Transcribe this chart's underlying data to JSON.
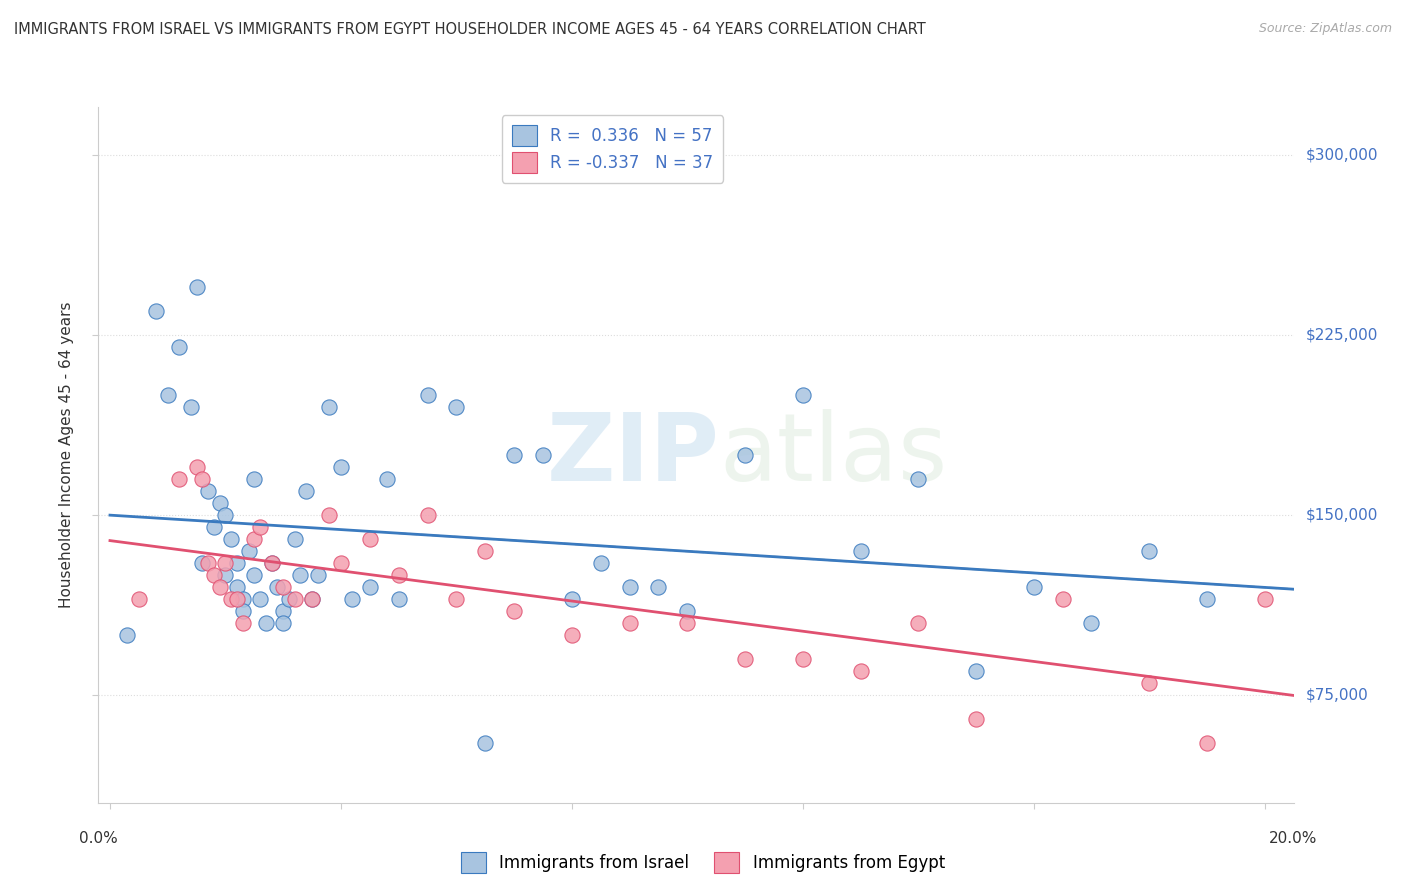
{
  "title": "IMMIGRANTS FROM ISRAEL VS IMMIGRANTS FROM EGYPT HOUSEHOLDER INCOME AGES 45 - 64 YEARS CORRELATION CHART",
  "source": "Source: ZipAtlas.com",
  "ylabel": "Householder Income Ages 45 - 64 years",
  "ytick_labels": [
    "$75,000",
    "$150,000",
    "$225,000",
    "$300,000"
  ],
  "ytick_values": [
    75000,
    150000,
    225000,
    300000
  ],
  "ylim": [
    30000,
    320000
  ],
  "xlim": [
    -0.002,
    0.205
  ],
  "watermark_zip": "ZIP",
  "watermark_atlas": "atlas",
  "legend_r1": "R =  0.336   N = 57",
  "legend_r2": "R = -0.337   N = 37",
  "israel_color": "#a8c4e0",
  "israel_line_color": "#3a7abf",
  "egypt_color": "#f4a0b0",
  "egypt_line_color": "#e05070",
  "trendline_dashed_color": "#c0c0c0",
  "israel_scatter_x": [
    0.003,
    0.008,
    0.01,
    0.012,
    0.014,
    0.015,
    0.016,
    0.017,
    0.018,
    0.019,
    0.02,
    0.02,
    0.021,
    0.022,
    0.022,
    0.023,
    0.023,
    0.024,
    0.025,
    0.025,
    0.026,
    0.027,
    0.028,
    0.029,
    0.03,
    0.03,
    0.031,
    0.032,
    0.033,
    0.034,
    0.035,
    0.036,
    0.038,
    0.04,
    0.042,
    0.045,
    0.048,
    0.05,
    0.055,
    0.06,
    0.065,
    0.07,
    0.075,
    0.08,
    0.085,
    0.09,
    0.095,
    0.1,
    0.11,
    0.12,
    0.13,
    0.14,
    0.15,
    0.16,
    0.17,
    0.18,
    0.19
  ],
  "israel_scatter_y": [
    100000,
    235000,
    200000,
    220000,
    195000,
    245000,
    130000,
    160000,
    145000,
    155000,
    125000,
    150000,
    140000,
    130000,
    120000,
    115000,
    110000,
    135000,
    165000,
    125000,
    115000,
    105000,
    130000,
    120000,
    110000,
    105000,
    115000,
    140000,
    125000,
    160000,
    115000,
    125000,
    195000,
    170000,
    115000,
    120000,
    165000,
    115000,
    200000,
    195000,
    55000,
    175000,
    175000,
    115000,
    130000,
    120000,
    120000,
    110000,
    175000,
    200000,
    135000,
    165000,
    85000,
    120000,
    105000,
    135000,
    115000
  ],
  "egypt_scatter_x": [
    0.005,
    0.012,
    0.015,
    0.016,
    0.017,
    0.018,
    0.019,
    0.02,
    0.021,
    0.022,
    0.023,
    0.025,
    0.026,
    0.028,
    0.03,
    0.032,
    0.035,
    0.038,
    0.04,
    0.045,
    0.05,
    0.055,
    0.06,
    0.065,
    0.07,
    0.08,
    0.09,
    0.1,
    0.11,
    0.12,
    0.13,
    0.14,
    0.15,
    0.165,
    0.18,
    0.19,
    0.2
  ],
  "egypt_scatter_y": [
    115000,
    165000,
    170000,
    165000,
    130000,
    125000,
    120000,
    130000,
    115000,
    115000,
    105000,
    140000,
    145000,
    130000,
    120000,
    115000,
    115000,
    150000,
    130000,
    140000,
    125000,
    150000,
    115000,
    135000,
    110000,
    100000,
    105000,
    105000,
    90000,
    90000,
    85000,
    105000,
    65000,
    115000,
    80000,
    55000,
    115000
  ]
}
